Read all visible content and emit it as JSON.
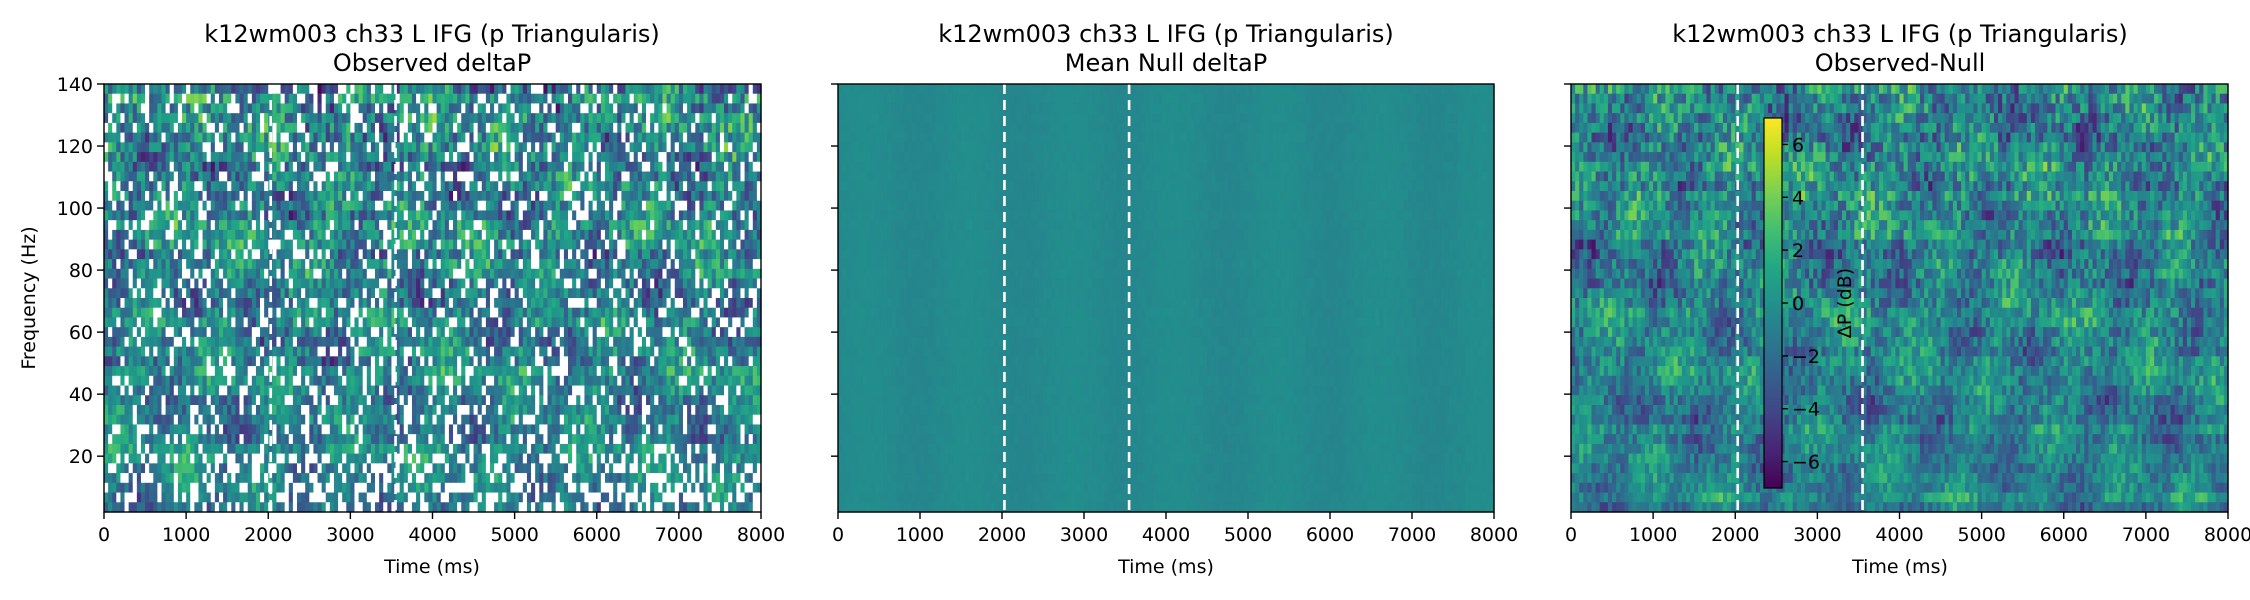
{
  "chart_data": [
    {
      "type": "heatmap",
      "title": "k12wm003 ch33 L IFG (p Triangularis)",
      "subtitle": "Observed deltaP",
      "xlabel": "Time (ms)",
      "ylabel": "Frequency (Hz)",
      "xlim": [
        0,
        8000
      ],
      "ylim": [
        2,
        140
      ],
      "xticks": [
        "0",
        "1000",
        "2000",
        "3000",
        "4000",
        "5000",
        "6000",
        "7000",
        "8000"
      ],
      "yticks": [
        "20",
        "40",
        "60",
        "80",
        "100",
        "120",
        "140"
      ],
      "event_lines_ms": [
        2030,
        3550
      ],
      "colormap": "viridis",
      "masked_regions": "white (non-significant / NaN cells)"
    },
    {
      "type": "heatmap",
      "title": "k12wm003 ch33 L IFG (p Triangularis)",
      "subtitle": "Mean Null deltaP",
      "xlabel": "Time (ms)",
      "xlim": [
        0,
        8000
      ],
      "ylim": [
        2,
        140
      ],
      "xticks": [
        "0",
        "1000",
        "2000",
        "3000",
        "4000",
        "5000",
        "6000",
        "7000",
        "8000"
      ],
      "event_lines_ms": [
        2030,
        3550
      ],
      "colormap": "viridis"
    },
    {
      "type": "heatmap",
      "title": "k12wm003 ch33 L IFG (p Triangularis)",
      "subtitle": "Observed-Null",
      "xlabel": "Time (ms)",
      "xlim": [
        0,
        8000
      ],
      "ylim": [
        2,
        140
      ],
      "xticks": [
        "0",
        "1000",
        "2000",
        "3000",
        "4000",
        "5000",
        "6000",
        "7000",
        "8000"
      ],
      "event_lines_ms": [
        2030,
        3550
      ],
      "colormap": "viridis",
      "colorbar": {
        "label": "ΔP (dB)",
        "range": [
          -7,
          7
        ],
        "ticks": [
          "6",
          "4",
          "2",
          "0",
          "−2",
          "−4",
          "−6"
        ]
      }
    }
  ]
}
